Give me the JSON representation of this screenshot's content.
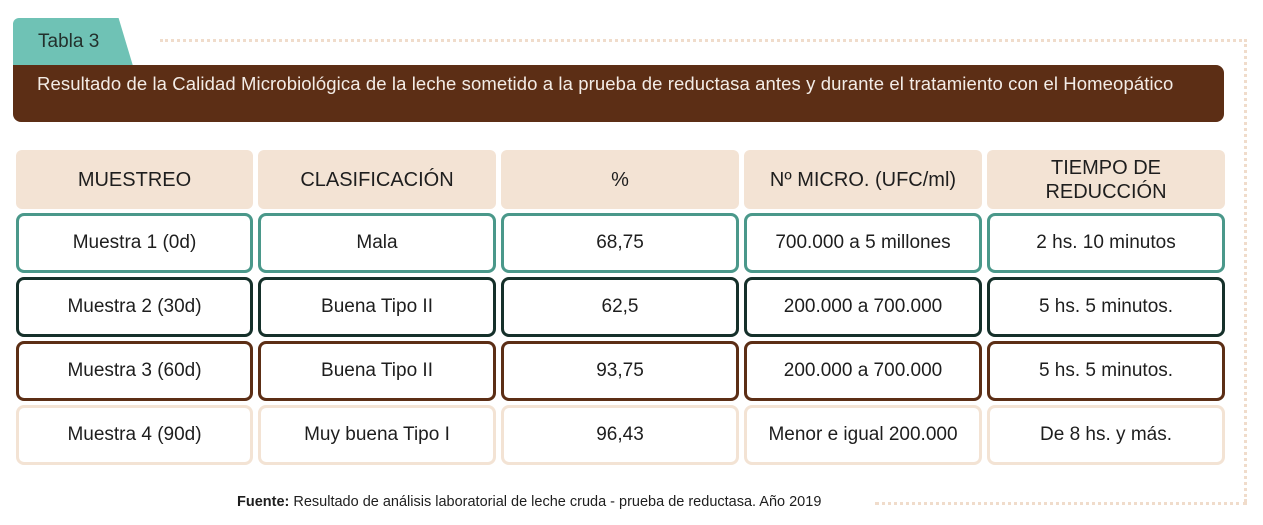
{
  "tab_label": "Tabla 3",
  "title": "Resultado de la Calidad Microbiológica de la leche sometido a la prueba de reductasa antes y durante el tratamiento con el Homeopático",
  "table": {
    "headers": [
      "MUESTREO",
      "CLASIFICACIÓN",
      "%",
      "Nº MICRO. (UFC/ml)",
      "TIEMPO DE REDUCCIÓN"
    ],
    "rows": [
      [
        "Muestra 1 (0d)",
        "Mala",
        "68,75",
        "700.000 a 5 millones",
        "2 hs. 10 minutos"
      ],
      [
        "Muestra 2 (30d)",
        "Buena Tipo II",
        "62,5",
        "200.000 a 700.000",
        "5 hs. 5 minutos."
      ],
      [
        "Muestra 3 (60d)",
        "Buena Tipo II",
        "93,75",
        "200.000 a 700.000",
        "5 hs. 5 minutos."
      ],
      [
        "Muestra 4 (90d)",
        "Muy buena Tipo I",
        "96,43",
        "Menor e igual 200.000",
        "De 8 hs. y más."
      ]
    ]
  },
  "source": {
    "label": "Fuente:",
    "text": " Resultado de análisis laboratorial de leche cruda - prueba de reductasa. Año 2019"
  },
  "colors": {
    "tab": "#6fc2b5",
    "banner": "#5c2e15",
    "header_cell": "#f3e3d4",
    "row1_border": "#4a988a",
    "row2_border": "#15302a",
    "row3_border": "#5c2e15",
    "row4_border": "#f3e3d4"
  }
}
